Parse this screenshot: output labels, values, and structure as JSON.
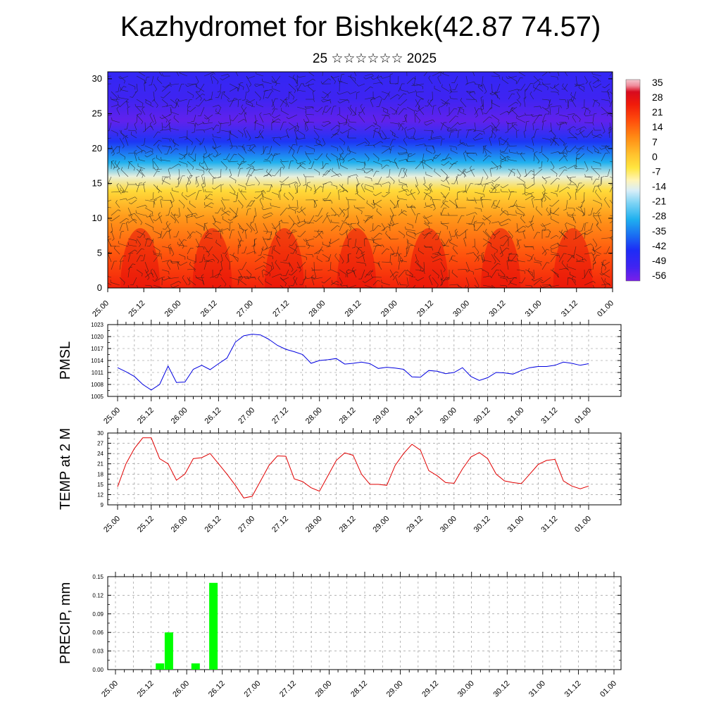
{
  "header": {
    "title": "Kazhydromet for Bishkek(42.87 74.57)",
    "subtitle": "25 ☆☆☆☆☆☆ 2025"
  },
  "colors": {
    "pmsl_line": "#0000e0",
    "temp_line": "#e00000",
    "precip_bar": "#00ff00",
    "grid": "#888888"
  },
  "chart_data": [
    {
      "type": "heatmap",
      "title": "",
      "xlabel": "",
      "ylabel": "",
      "x_tick_labels": [
        "25.00",
        "25.12",
        "26.00",
        "26.12",
        "27.00",
        "27.12",
        "28.00",
        "28.12",
        "29.00",
        "29.12",
        "30.00",
        "30.12",
        "31.00",
        "31.12",
        "01.00"
      ],
      "y_ticks": [
        0,
        5,
        10,
        15,
        20,
        25,
        30
      ],
      "ylim": [
        0,
        31
      ],
      "colorbar_labels": [
        "35",
        "28",
        "21",
        "14",
        "7",
        "0",
        "-7",
        "-14",
        "-21",
        "-28",
        "-35",
        "-42",
        "-49",
        "-56"
      ],
      "colorbar_range": [
        -60,
        38
      ],
      "overlay": "wind barbs",
      "level_profile": [
        {
          "level": 0,
          "value": 25
        },
        {
          "level": 5,
          "value": 17
        },
        {
          "level": 10,
          "value": 8
        },
        {
          "level": 14,
          "value": -3
        },
        {
          "level": 16,
          "value": -14
        },
        {
          "level": 18,
          "value": -30
        },
        {
          "level": 21,
          "value": -44
        },
        {
          "level": 24,
          "value": -57
        },
        {
          "level": 27,
          "value": -53
        },
        {
          "level": 31,
          "value": -50
        }
      ]
    },
    {
      "type": "line",
      "title": "",
      "ylabel": "PMSL",
      "ylim": [
        1005,
        1023
      ],
      "y_ticks": [
        1005,
        1008,
        1011,
        1014,
        1017,
        1020,
        1023
      ],
      "x_tick_labels": [
        "25.00",
        "25.12",
        "26.00",
        "26.12",
        "27.00",
        "27.12",
        "28.00",
        "28.12",
        "29.00",
        "29.12",
        "30.00",
        "30.12",
        "31.00",
        "31.12",
        "01.00"
      ],
      "x": [
        0,
        3,
        6,
        9,
        12,
        15,
        18,
        21,
        24,
        27,
        30,
        33,
        36,
        39,
        42,
        45,
        48,
        51,
        54,
        57,
        60,
        63,
        66,
        69,
        72,
        75,
        78,
        81,
        84,
        87,
        90,
        93,
        96,
        99,
        102,
        105,
        108,
        111,
        114,
        117,
        120,
        123,
        126,
        129,
        132,
        135,
        138,
        141,
        144,
        147,
        150,
        153,
        156,
        159,
        162,
        165,
        168
      ],
      "series": [
        {
          "values": [
            1012.2,
            1011.2,
            1010.0,
            1008.0,
            1006.6,
            1008.0,
            1012.6,
            1008.5,
            1008.6,
            1011.8,
            1012.8,
            1011.7,
            1013.2,
            1014.6,
            1018.6,
            1020.2,
            1020.6,
            1020.4,
            1019.3,
            1017.8,
            1016.8,
            1016.2,
            1015.5,
            1013.3,
            1014.0,
            1014.2,
            1014.5,
            1013.1,
            1013.3,
            1013.6,
            1013.2,
            1012.0,
            1012.3,
            1012.1,
            1011.8,
            1009.9,
            1009.8,
            1011.5,
            1011.3,
            1010.7,
            1011.0,
            1012.2,
            1010.0,
            1009.0,
            1009.7,
            1011.0,
            1010.9,
            1010.6,
            1011.5,
            1012.2,
            1012.5,
            1012.5,
            1012.8,
            1013.6,
            1013.3,
            1012.8,
            1013.2
          ]
        }
      ]
    },
    {
      "type": "line",
      "title": "",
      "ylabel": "TEMP at 2 M",
      "ylim": [
        9,
        30
      ],
      "y_ticks": [
        9,
        12,
        15,
        18,
        21,
        24,
        27,
        30
      ],
      "x_tick_labels": [
        "25.00",
        "25.12",
        "26.00",
        "26.12",
        "27.00",
        "27.12",
        "28.00",
        "28.12",
        "29.00",
        "29.12",
        "30.00",
        "30.12",
        "31.00",
        "31.12",
        "01.00"
      ],
      "x": [
        0,
        3,
        6,
        9,
        12,
        15,
        18,
        21,
        24,
        27,
        30,
        33,
        36,
        39,
        42,
        45,
        48,
        51,
        54,
        57,
        60,
        63,
        66,
        69,
        72,
        75,
        78,
        81,
        84,
        87,
        90,
        93,
        96,
        99,
        102,
        105,
        108,
        111,
        114,
        117,
        120,
        123,
        126,
        129,
        132,
        135,
        138,
        141,
        144,
        147,
        150,
        153,
        156,
        159,
        162,
        165,
        168
      ],
      "series": [
        {
          "values": [
            14.3,
            21.0,
            25.5,
            28.6,
            28.6,
            22.5,
            21.0,
            16.2,
            18.0,
            22.5,
            22.8,
            24.0,
            21.0,
            18.0,
            14.7,
            11.0,
            11.5,
            16.0,
            20.5,
            23.3,
            23.2,
            16.6,
            15.8,
            14.0,
            13.0,
            17.5,
            22.0,
            24.2,
            23.5,
            18.0,
            15.0,
            15.0,
            14.7,
            20.5,
            24.0,
            26.7,
            25.0,
            19.0,
            17.5,
            15.5,
            15.3,
            19.5,
            23.0,
            24.3,
            22.5,
            18.0,
            16.0,
            15.5,
            15.2,
            18.0,
            20.8,
            22.0,
            22.3,
            16.0,
            14.5,
            13.7,
            14.5
          ]
        }
      ]
    },
    {
      "type": "bar",
      "title": "",
      "ylabel": "PRECIP, mm",
      "ylim": [
        0,
        0.15
      ],
      "y_tick_labels": [
        "0.00",
        "0.03",
        "0.06",
        "0.09",
        "0.12",
        "0.15"
      ],
      "x_tick_labels": [
        "25.00",
        "25.12",
        "26.00",
        "26.12",
        "27.00",
        "27.12",
        "28.00",
        "28.12",
        "29.00",
        "29.12",
        "30.00",
        "30.12",
        "31.00",
        "31.12",
        "01.00"
      ],
      "bars": [
        {
          "x": 15,
          "value": 0.01
        },
        {
          "x": 18,
          "value": 0.06
        },
        {
          "x": 27,
          "value": 0.01
        },
        {
          "x": 33,
          "value": 0.14
        }
      ]
    }
  ]
}
